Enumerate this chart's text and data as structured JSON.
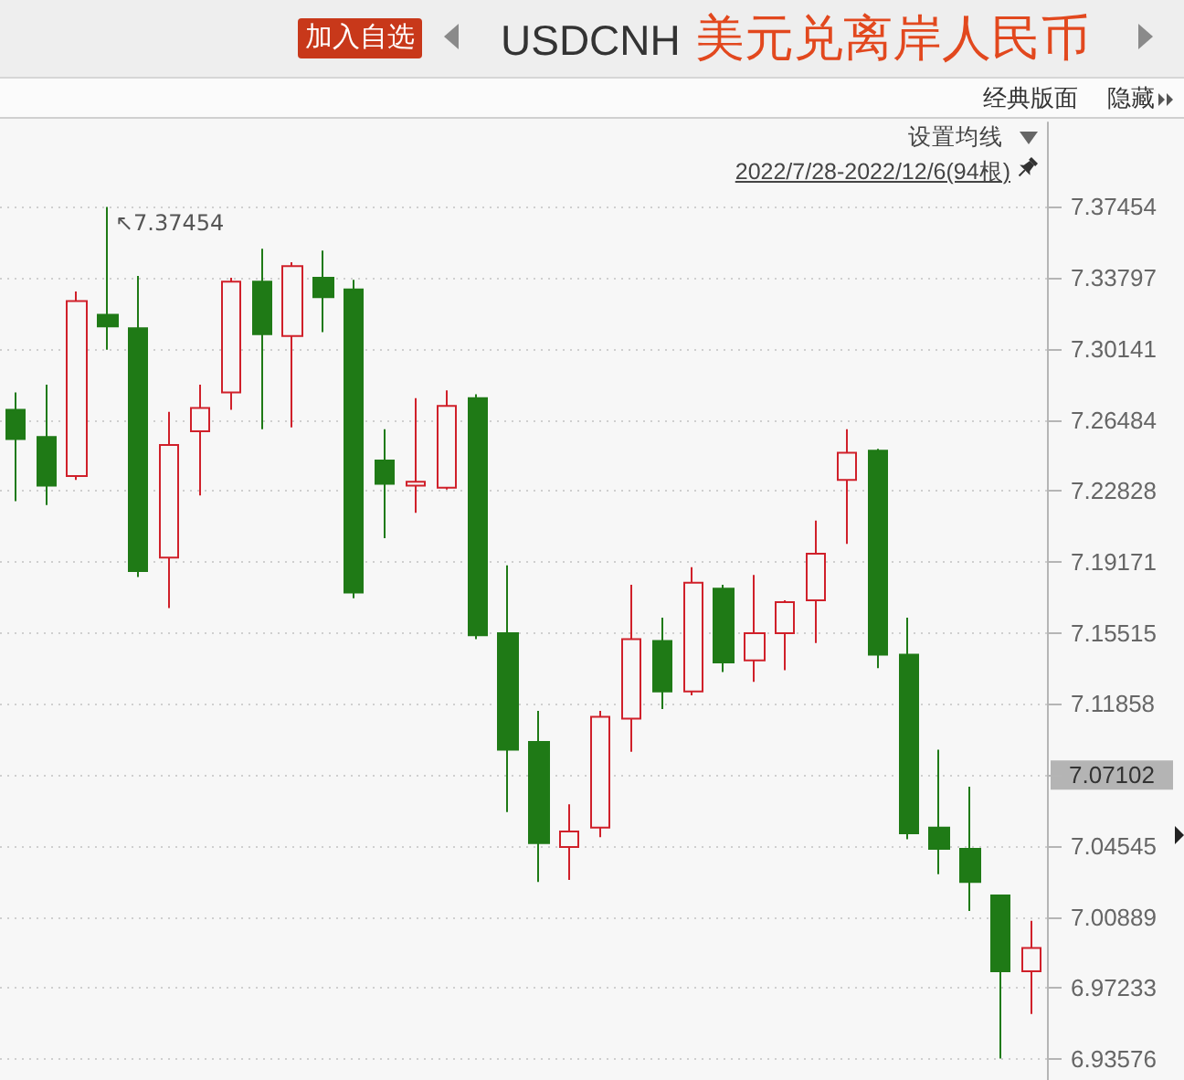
{
  "chart_data": {
    "type": "candlestick",
    "title": "USDCNH",
    "subtitle": "美元兑离岸人民币",
    "annotations": [
      "加入自选",
      "经典版面",
      "隐藏",
      "设置均线",
      "2022/7/28-2022/12/6(94根)",
      "↖7.37454",
      "7.07102"
    ],
    "categories": [
      null,
      null,
      null,
      null,
      null,
      null,
      null,
      null,
      null,
      null,
      null,
      null,
      null,
      null,
      null,
      null,
      null,
      null,
      null,
      null,
      null,
      null,
      null,
      null,
      null,
      null,
      null,
      null,
      null,
      null,
      null,
      null,
      null,
      null
    ],
    "ohlc": [
      [
        7.27,
        7.279,
        7.223,
        7.255
      ],
      [
        7.256,
        7.283,
        7.221,
        7.231
      ],
      [
        7.236,
        7.331,
        7.234,
        7.326
      ],
      [
        7.319,
        7.37454,
        7.301,
        7.313
      ],
      [
        7.312,
        7.339,
        7.184,
        7.187
      ],
      [
        7.194,
        7.269,
        7.168,
        7.252
      ],
      [
        7.259,
        7.283,
        7.226,
        7.271
      ],
      [
        7.279,
        7.338,
        7.27,
        7.336
      ],
      [
        7.336,
        7.353,
        7.26,
        7.309
      ],
      [
        7.308,
        7.346,
        7.261,
        7.344
      ],
      [
        7.338,
        7.352,
        7.31,
        7.328
      ],
      [
        7.332,
        7.337,
        7.173,
        7.176
      ],
      [
        7.244,
        7.26,
        7.204,
        7.232
      ],
      [
        7.231,
        7.276,
        7.217,
        7.233
      ],
      [
        7.23,
        7.28,
        7.229,
        7.272
      ],
      [
        7.276,
        7.278,
        7.152,
        7.154
      ],
      [
        7.155,
        7.19,
        7.063,
        7.095
      ],
      [
        7.099,
        7.115,
        7.027,
        7.047
      ],
      [
        7.045,
        7.067,
        7.028,
        7.053
      ],
      [
        7.055,
        7.115,
        7.05,
        7.112
      ],
      [
        7.111,
        7.18,
        7.094,
        7.152
      ],
      [
        7.151,
        7.163,
        7.116,
        7.125
      ],
      [
        7.125,
        7.189,
        7.123,
        7.181
      ],
      [
        7.178,
        7.18,
        7.135,
        7.14
      ],
      [
        7.141,
        7.185,
        7.13,
        7.155
      ],
      [
        7.155,
        7.172,
        7.136,
        7.171
      ],
      [
        7.172,
        7.213,
        7.15,
        7.196
      ],
      [
        7.234,
        7.26,
        7.201,
        7.248
      ],
      [
        7.249,
        7.25,
        7.137,
        7.144
      ],
      [
        7.144,
        7.163,
        7.049,
        7.052
      ],
      [
        7.055,
        7.095,
        7.031,
        7.044
      ],
      [
        7.044,
        7.076,
        7.012,
        7.027
      ],
      [
        7.02,
        7.02,
        6.936,
        6.981
      ],
      [
        6.981,
        7.007,
        6.959,
        6.993
      ]
    ],
    "colors": [
      "#1f7a16",
      "#1f7a16",
      "#d0202a",
      "#1f7a16",
      "#1f7a16",
      "#d0202a",
      "#d0202a",
      "#d0202a",
      "#1f7a16",
      "#d0202a",
      "#1f7a16",
      "#1f7a16",
      "#1f7a16",
      "#d0202a",
      "#d0202a",
      "#1f7a16",
      "#1f7a16",
      "#1f7a16",
      "#d0202a",
      "#d0202a",
      "#d0202a",
      "#1f7a16",
      "#d0202a",
      "#1f7a16",
      "#d0202a",
      "#d0202a",
      "#d0202a",
      "#d0202a",
      "#1f7a16",
      "#1f7a16",
      "#1f7a16",
      "#1f7a16",
      "#1f7a16",
      "#d0202a"
    ],
    "ylim": [
      6.925,
      7.418
    ],
    "yticks": [
      6.93576,
      6.97233,
      7.00889,
      7.04545,
      {
        "value": 7.08202,
        "label": null
      },
      7.11858,
      7.15515,
      7.19171,
      7.22828,
      7.26484,
      7.30141,
      7.33797,
      7.37454
    ],
    "grid": "y",
    "tick_labels": "y"
  }
}
